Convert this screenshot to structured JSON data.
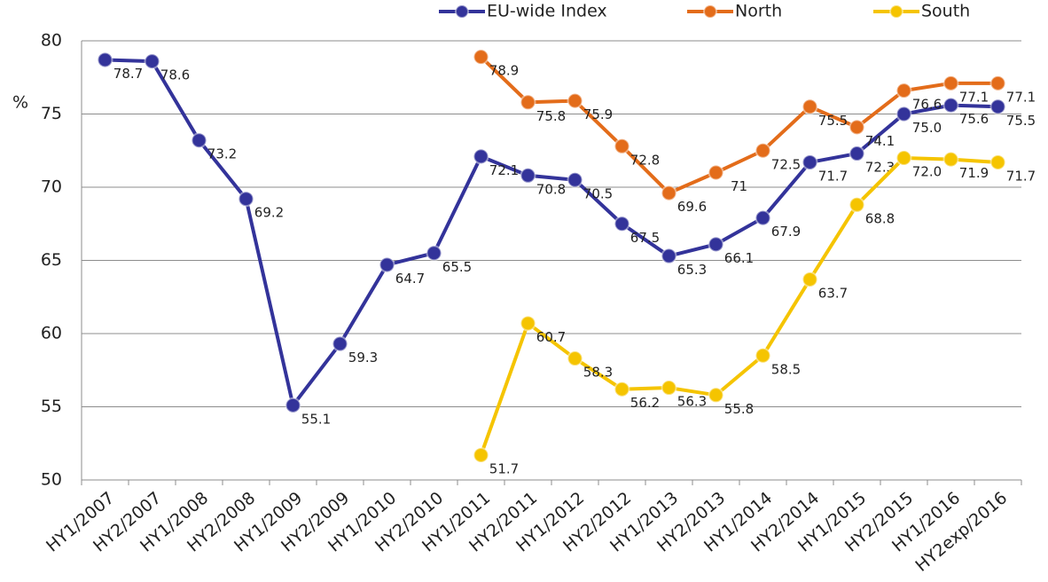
{
  "chart_data": {
    "type": "line",
    "y_label": "%",
    "categories": [
      "HY1/2007",
      "HY2/2007",
      "HY1/2008",
      "HY2/2008",
      "HY1/2009",
      "HY2/2009",
      "HY1/2010",
      "HY2/2010",
      "HY1/2011",
      "HY2/2011",
      "HY1/2012",
      "HY2/2012",
      "HY1/2013",
      "HY2/2013",
      "HY1/2014",
      "HY2/2014",
      "HY1/2015",
      "HY2/2015",
      "HY1/2016",
      "HY2exp/2016"
    ],
    "series": [
      {
        "name": "EU-wide Index",
        "color": "#33339a",
        "values": [
          78.7,
          78.6,
          73.2,
          69.2,
          55.1,
          59.3,
          64.7,
          65.5,
          72.1,
          70.8,
          70.5,
          67.5,
          65.3,
          66.1,
          67.9,
          71.7,
          72.3,
          75.0,
          75.6,
          75.5
        ],
        "value_labels": [
          "78.7",
          "78.6",
          "73.2",
          "69.2",
          "55.1",
          "59.3",
          "64.7",
          "65.5",
          "72.1",
          "70.8",
          "70.5",
          "67.5",
          "65.3",
          "66.1",
          "67.9",
          "71.7",
          "72.3",
          "75.0",
          "75.6",
          "75.5"
        ]
      },
      {
        "name": "North",
        "color": "#e36c1a",
        "values": [
          null,
          null,
          null,
          null,
          null,
          null,
          null,
          null,
          78.9,
          75.8,
          75.9,
          72.8,
          69.6,
          71,
          72.5,
          75.5,
          74.1,
          76.6,
          77.1,
          77.1
        ],
        "value_labels": [
          null,
          null,
          null,
          null,
          null,
          null,
          null,
          null,
          "78.9",
          "75.8",
          "75.9",
          "72.8",
          "69.6",
          "71",
          "72.5",
          "75.5",
          "74.1",
          "76.6",
          "77.1",
          "77.1"
        ]
      },
      {
        "name": "South",
        "color": "#f5c400",
        "values": [
          null,
          null,
          null,
          null,
          null,
          null,
          null,
          null,
          51.7,
          60.7,
          58.3,
          56.2,
          56.3,
          55.8,
          58.5,
          63.7,
          68.8,
          72.0,
          71.9,
          71.7
        ],
        "value_labels": [
          null,
          null,
          null,
          null,
          null,
          null,
          null,
          null,
          "51.7",
          "60.7",
          "58.3",
          "56.2",
          "56.3",
          "55.8",
          "58.5",
          "63.7",
          "68.8",
          "72.0",
          "71.9",
          "71.7"
        ]
      }
    ],
    "ylim": [
      50,
      80
    ],
    "yticks": [
      50,
      55,
      60,
      65,
      70,
      75,
      80
    ],
    "grid": true,
    "legend": "top"
  }
}
